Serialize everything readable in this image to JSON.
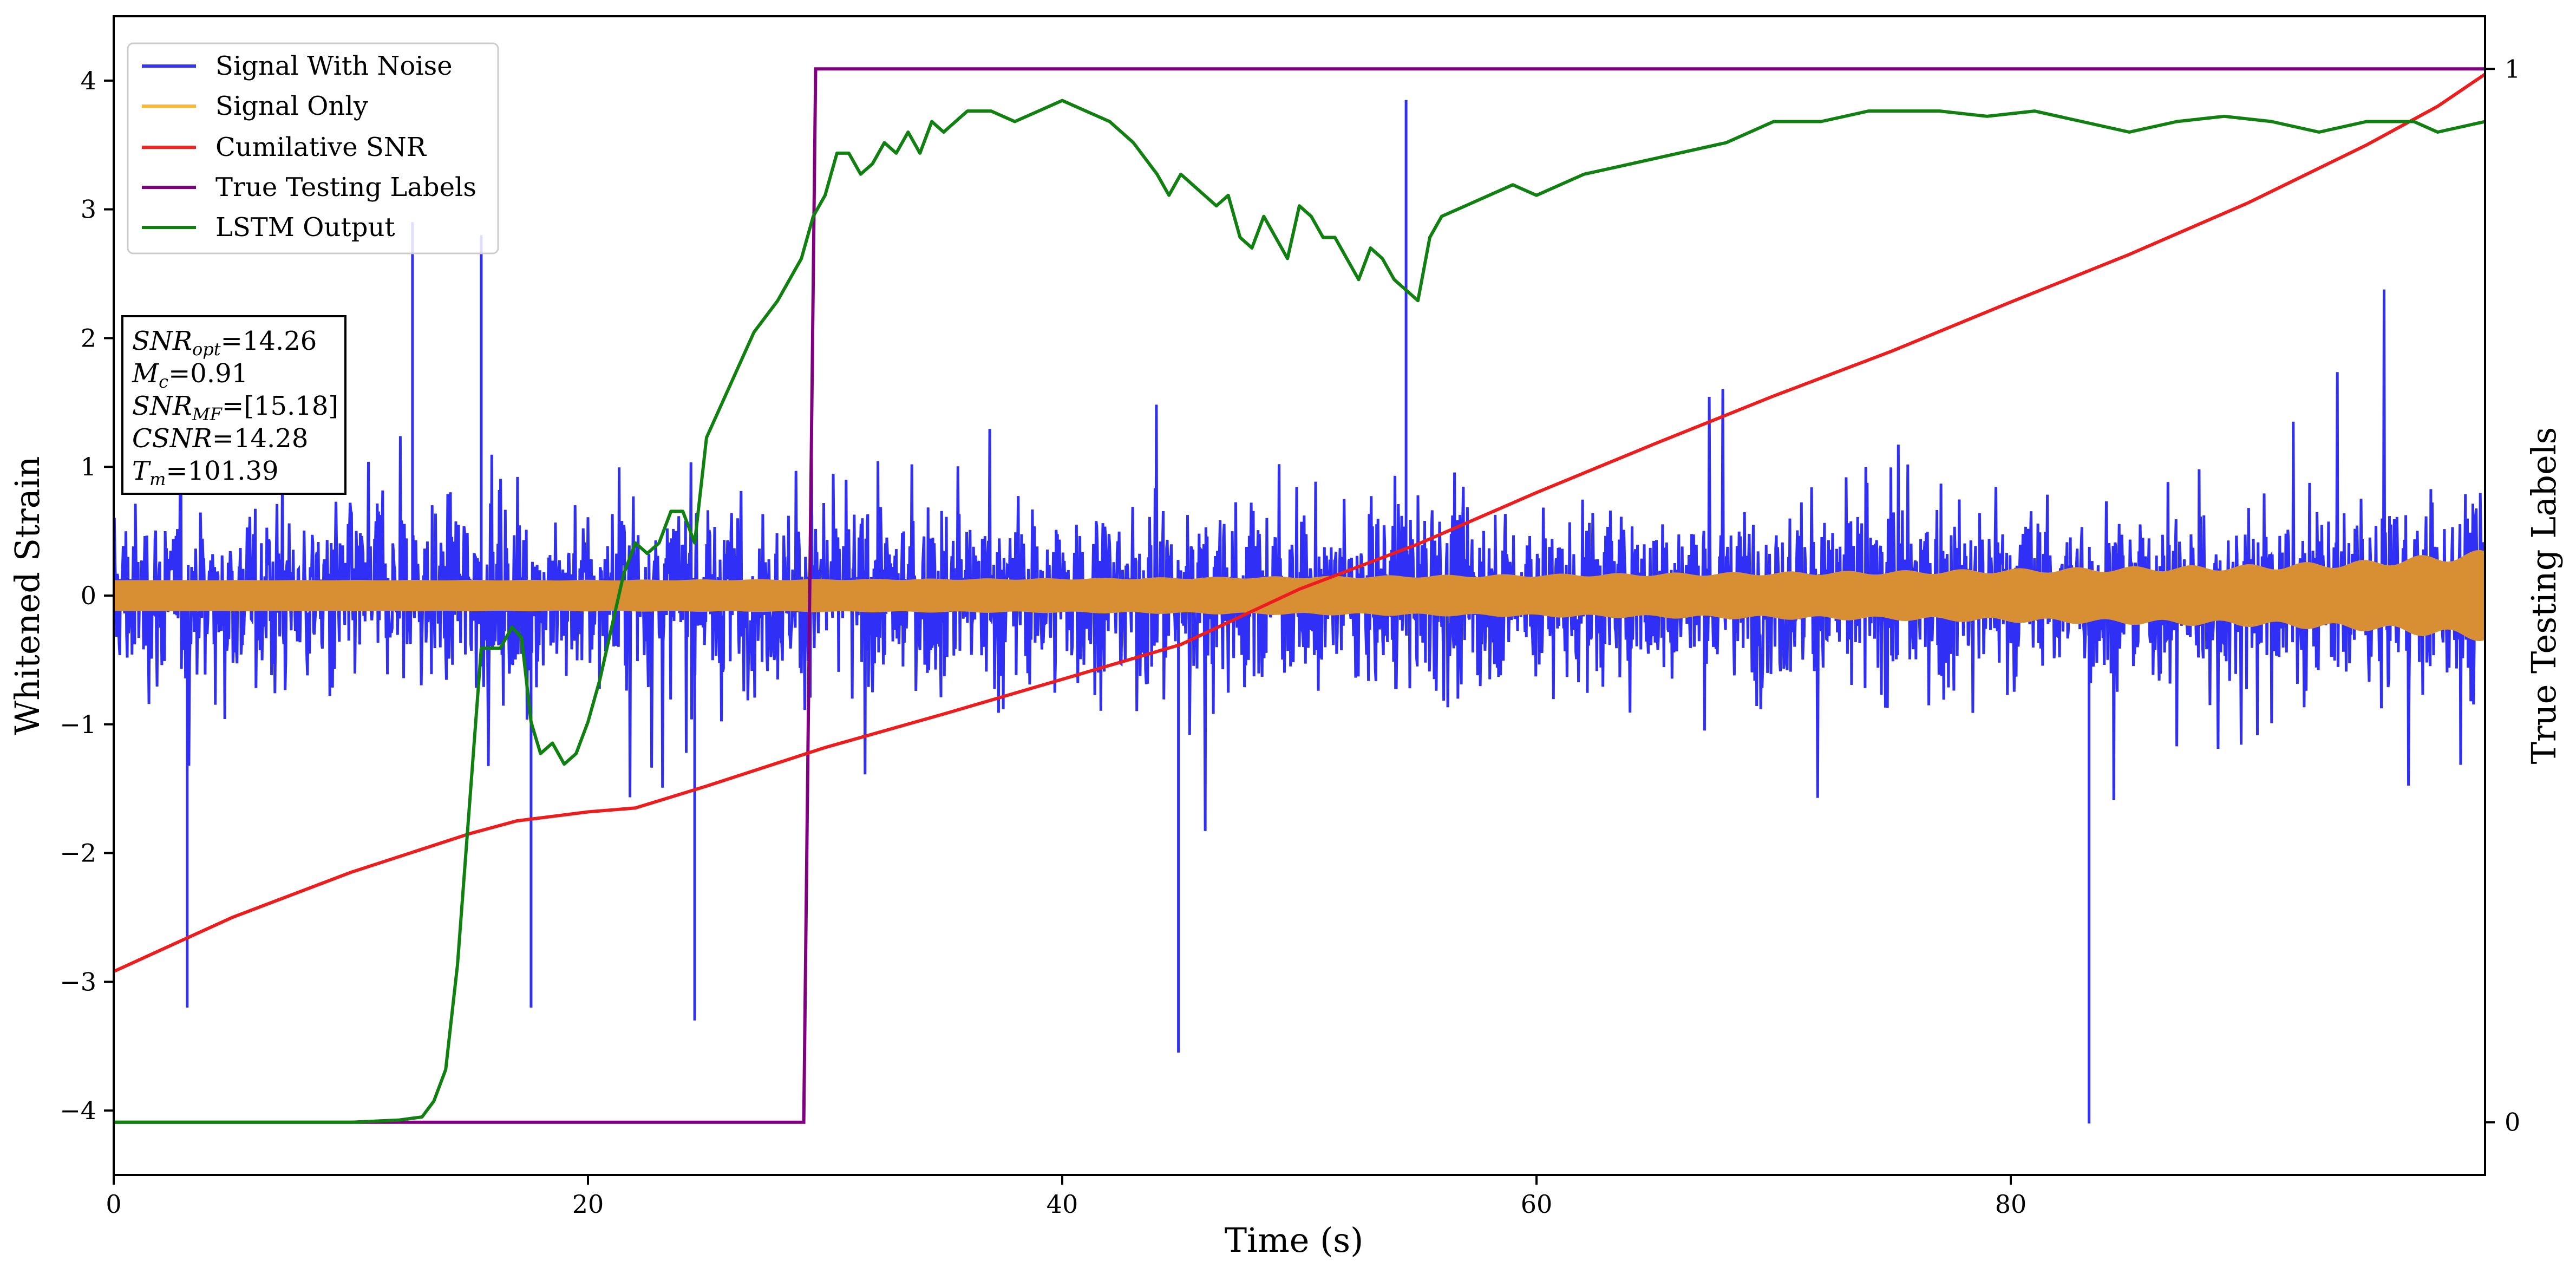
{
  "chart_data": {
    "type": "line",
    "xlabel": "Time (s)",
    "ylabel": "Whitened Strain",
    "y2label": "True Testing Labels",
    "xlim": [
      0,
      100
    ],
    "ylim": [
      -4.5,
      4.5
    ],
    "y2lim": [
      -0.05,
      1.05
    ],
    "x_ticks": [
      0,
      20,
      40,
      60,
      80
    ],
    "y_ticks": [
      -4,
      -3,
      -2,
      -1,
      0,
      1,
      2,
      3,
      4
    ],
    "y2_ticks": [
      0,
      1
    ],
    "legend_position": "top-left",
    "colors": {
      "signal_with_noise": "#2f2ff5",
      "signal_only": "#d88f33",
      "cumulative_snr": "#ee1c1c",
      "true_labels": "#800080",
      "lstm_output": "#108010"
    },
    "legend": [
      {
        "label": "Signal With Noise",
        "color": "#3333ff"
      },
      {
        "label": "Signal Only",
        "color": "#ffb833"
      },
      {
        "label": "Cumilative SNR",
        "color": "#ff1f1f"
      },
      {
        "label": "True Testing Labels",
        "color": "#800080"
      },
      {
        "label": "LSTM Output",
        "color": "#108010"
      }
    ],
    "annotation": {
      "snr_opt": {
        "base": "SNR",
        "sub": "opt",
        "value": "=14.26"
      },
      "mc": {
        "base": "M",
        "sub": "c",
        "value": "=0.91"
      },
      "snr_mf": {
        "base": "SNR",
        "sub": "MF",
        "value": "=[15.18]"
      },
      "csnr": {
        "base": "CSNR",
        "value": "=14.28"
      },
      "tm": {
        "base": "T",
        "sub": "m",
        "value": "=101.39"
      }
    },
    "series": [
      {
        "name": "Signal With Noise",
        "axis": "left",
        "style": "dense-noise",
        "x_range": [
          0,
          100
        ],
        "typical_envelope": [
          -1.4,
          1.4
        ],
        "notable_peaks": [
          {
            "x": 12.6,
            "y": 2.9
          },
          {
            "x": 15.5,
            "y": 2.8
          },
          {
            "x": 54.5,
            "y": 3.85
          },
          {
            "x": 3.1,
            "y": -3.2
          },
          {
            "x": 17.6,
            "y": -3.2
          },
          {
            "x": 24.5,
            "y": -3.3
          },
          {
            "x": 44.9,
            "y": -3.55
          },
          {
            "x": 83.3,
            "y": -4.1
          }
        ]
      },
      {
        "name": "Signal Only",
        "axis": "left",
        "style": "chirp-envelope",
        "amplitude": [
          [
            0,
            0.12
          ],
          [
            15,
            0.12
          ],
          [
            20,
            0.12
          ],
          [
            40,
            0.13
          ],
          [
            55,
            0.15
          ],
          [
            75,
            0.18
          ],
          [
            90,
            0.22
          ],
          [
            95,
            0.25
          ],
          [
            100,
            0.32
          ]
        ]
      },
      {
        "name": "Cumilative SNR",
        "axis": "left",
        "x": [
          0,
          5,
          10,
          15,
          17,
          20,
          22,
          25,
          28,
          30,
          35,
          40,
          45,
          50,
          55,
          60,
          65,
          70,
          75,
          80,
          85,
          90,
          95,
          98,
          100
        ],
        "y": [
          -2.92,
          -2.5,
          -2.15,
          -1.85,
          -1.75,
          -1.68,
          -1.65,
          -1.48,
          -1.3,
          -1.18,
          -0.92,
          -0.65,
          -0.38,
          0.05,
          0.4,
          0.8,
          1.18,
          1.55,
          1.9,
          2.28,
          2.65,
          3.05,
          3.5,
          3.8,
          4.05
        ]
      },
      {
        "name": "True Testing Labels",
        "axis": "right",
        "x": [
          0,
          29.1,
          29.6,
          100
        ],
        "y": [
          0,
          0,
          1,
          1
        ]
      },
      {
        "name": "LSTM Output",
        "axis": "right",
        "x": [
          0,
          10,
          12,
          13,
          13.5,
          14,
          14.5,
          15,
          15.5,
          16,
          16.3,
          16.8,
          17.2,
          17.6,
          18,
          18.5,
          19,
          19.5,
          20,
          20.5,
          21,
          21.5,
          22,
          22.5,
          23,
          23.5,
          24,
          24.5,
          25,
          26,
          27,
          28,
          28.5,
          29,
          29.5,
          30,
          30.5,
          31,
          31.5,
          32,
          32.5,
          33,
          33.5,
          34,
          34.5,
          35,
          35.5,
          36,
          37,
          38,
          39,
          40,
          41,
          42,
          43,
          44,
          44.5,
          45,
          45.5,
          46,
          46.5,
          47,
          47.5,
          48,
          48.5,
          49,
          49.5,
          50,
          50.5,
          51,
          51.5,
          52,
          52.5,
          53,
          53.5,
          54,
          55,
          55.5,
          56,
          57,
          58,
          59,
          60,
          62,
          64,
          66,
          68,
          70,
          72,
          74,
          75,
          77,
          79,
          81,
          83,
          85,
          87,
          89,
          91,
          93,
          95,
          97,
          98,
          100
        ],
        "y": [
          0,
          0,
          0.002,
          0.005,
          0.02,
          0.05,
          0.15,
          0.3,
          0.45,
          0.45,
          0.45,
          0.47,
          0.46,
          0.38,
          0.35,
          0.36,
          0.34,
          0.35,
          0.38,
          0.42,
          0.47,
          0.52,
          0.55,
          0.54,
          0.55,
          0.58,
          0.58,
          0.55,
          0.65,
          0.7,
          0.75,
          0.78,
          0.8,
          0.82,
          0.86,
          0.88,
          0.92,
          0.92,
          0.9,
          0.91,
          0.93,
          0.92,
          0.94,
          0.92,
          0.95,
          0.94,
          0.95,
          0.96,
          0.96,
          0.95,
          0.96,
          0.97,
          0.96,
          0.95,
          0.93,
          0.9,
          0.88,
          0.9,
          0.89,
          0.88,
          0.87,
          0.88,
          0.84,
          0.83,
          0.86,
          0.84,
          0.82,
          0.87,
          0.86,
          0.84,
          0.84,
          0.82,
          0.8,
          0.83,
          0.82,
          0.8,
          0.78,
          0.84,
          0.86,
          0.87,
          0.88,
          0.89,
          0.88,
          0.9,
          0.91,
          0.92,
          0.93,
          0.95,
          0.95,
          0.96,
          0.96,
          0.96,
          0.955,
          0.96,
          0.95,
          0.94,
          0.95,
          0.955,
          0.95,
          0.94,
          0.95,
          0.95,
          0.94,
          0.95
        ]
      }
    ]
  }
}
